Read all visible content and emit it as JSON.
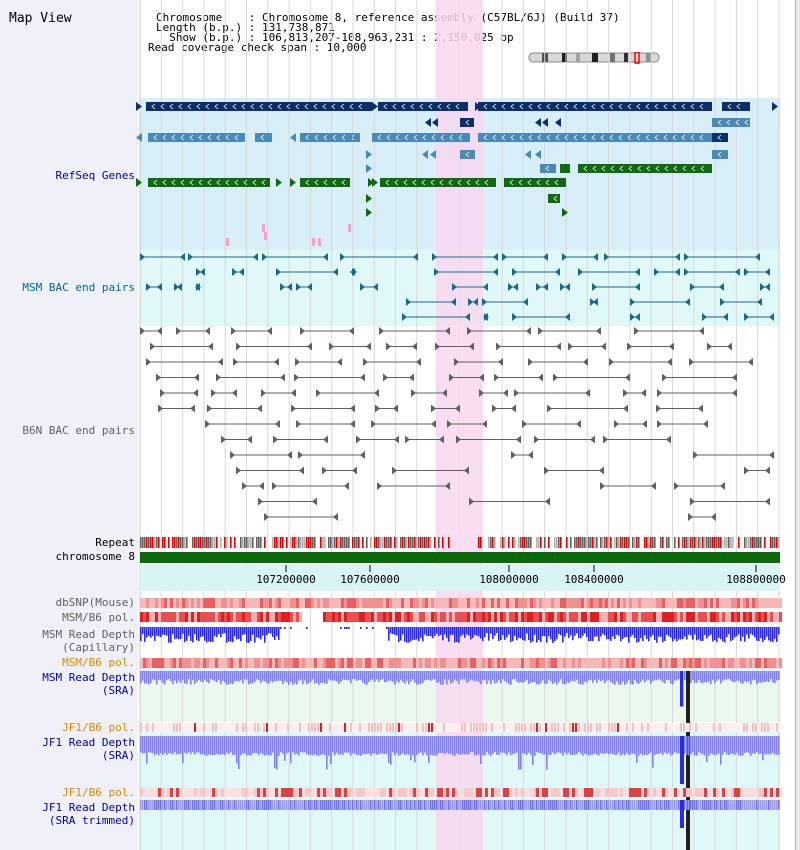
{
  "app": {
    "title": "Map View"
  },
  "info": {
    "chromosome_line": "Chromosome    : Chromosome 8, reference assembly (C57BL/6J) (Build 37)",
    "length_line": "Length (b.p.) : 131,738,871",
    "show_line": "  Show (b.p.) : 106,813,207-108,963,231 : 2,150,025 bp",
    "coverage_line": "Read coverage check span : 10,000"
  },
  "tracks": {
    "refseq": "RefSeq Genes",
    "msm_bac": "MSM BAC end pairs",
    "b6n_bac": "B6N BAC end pairs",
    "repeat": "Repeat",
    "chromosome": "chromosome 8",
    "dbsnp": "dbSNP(Mouse)",
    "msm_b6_pol_1": "MSM/B6 pol.",
    "msm_read_depth_cap": "MSM Read Depth\n(Capillary)",
    "msm_b6_pol_2": "MSM/B6 pol.",
    "msm_read_depth_sra": "MSM Read Depth\n(SRA)",
    "jf1_b6_pol_1": "JF1/B6 pol.",
    "jf1_read_depth_sra": "JF1 Read Depth\n(SRA)",
    "jf1_b6_pol_2": "JF1/B6 pol.",
    "jf1_read_depth_trim": "JF1 Read Depth\n(SRA trimmed)"
  },
  "ruler": {
    "ticks": [
      "107200000",
      "107600000",
      "108000000",
      "108400000",
      "108800000"
    ]
  },
  "colors": {
    "refseq_bg": "#d8eef8",
    "bac_bg": "#e0f8f8",
    "highlight": "#f8d8f0",
    "gene_dark": "#0a2f6a",
    "gene_mid": "#4a8ab8",
    "gene_green": "#106a10",
    "msm_bac": "#1a6a8a",
    "b6n_bac": "#606060",
    "depth_blue": "#2828f0",
    "depth_light": "#8080f0",
    "label_blue": "#0000aa",
    "label_teal": "#006a8a",
    "label_orange": "#e08800",
    "label_gray": "#606060"
  }
}
